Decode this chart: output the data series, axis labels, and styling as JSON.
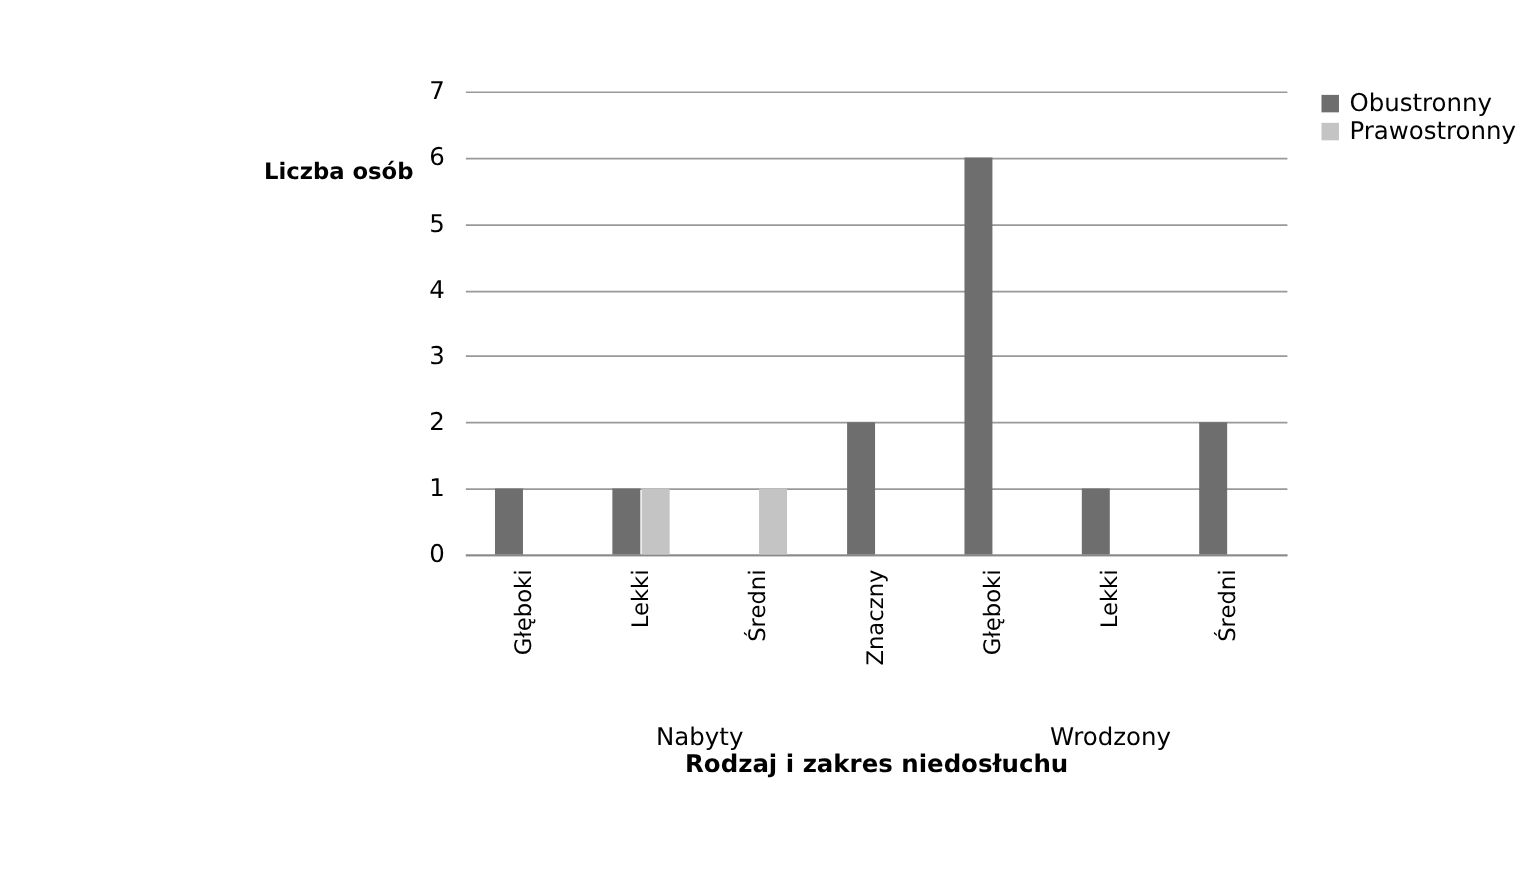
{
  "chart_data": {
    "type": "bar",
    "xlabel": "Rodzaj i zakres niedosłuchu",
    "ylabel": "Liczba osób",
    "categories": [
      "Głęboki",
      "Lekki",
      "Średni",
      "Znaczny",
      "Głęboki",
      "Lekki",
      "Średni"
    ],
    "series": [
      {
        "name": "Obustronny",
        "color": "#6e6e6e",
        "values": [
          1,
          1,
          null,
          2,
          6,
          1,
          2
        ]
      },
      {
        "name": "Prawostronny",
        "color": "#c4c4c4",
        "values": [
          null,
          1,
          1,
          null,
          null,
          null,
          null
        ]
      }
    ],
    "ylim": [
      0,
      7
    ],
    "yticks": [
      0,
      1,
      2,
      3,
      4,
      5,
      6,
      7
    ],
    "grid": "y",
    "legend": "right",
    "annotations": [
      "Nabyty",
      "Wrodzony"
    ]
  }
}
